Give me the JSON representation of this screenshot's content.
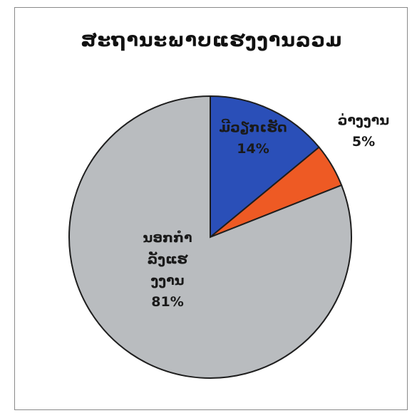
{
  "chart_data": {
    "type": "pie",
    "title": "ສະຖານະພາບແຮງງານລວມ",
    "slices": [
      {
        "label": "ມີວຽກເຮັດ",
        "value": 14,
        "value_label": "14%",
        "color": "#2a4fb8"
      },
      {
        "label": "ວ່າງງານ",
        "value": 5,
        "value_label": "5%",
        "color": "#ee5a24"
      },
      {
        "label": "ນອກກຳລັງແຮງງານ",
        "value": 81,
        "value_label": "81%",
        "color": "#b9bcbf"
      }
    ]
  }
}
